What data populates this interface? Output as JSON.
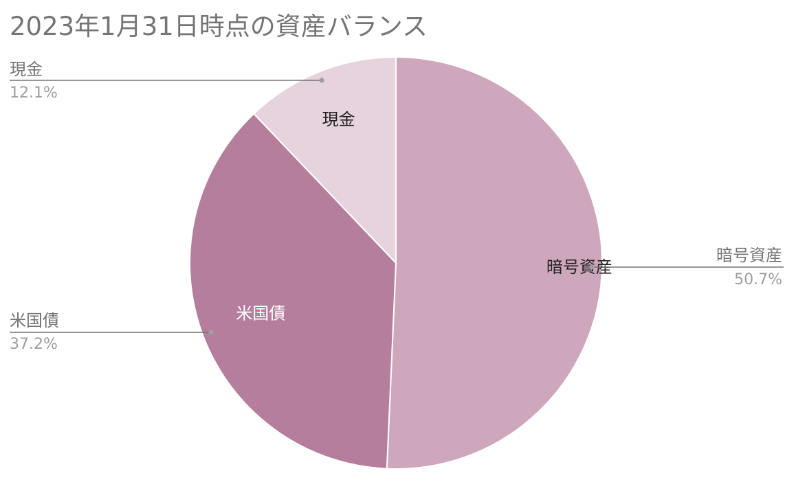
{
  "chart_data": {
    "type": "pie",
    "title": "2023年1月31日時点の資産バランス",
    "slices": [
      {
        "label": "暗号資産",
        "value": 50.7,
        "percent_label": "50.7%",
        "color": "#cea7bd",
        "label_color": "#212121"
      },
      {
        "label": "米国債",
        "value": 37.2,
        "percent_label": "37.2%",
        "color": "#b57e9d",
        "label_color": "#ffffff"
      },
      {
        "label": "現金",
        "value": 12.1,
        "percent_label": "12.1%",
        "color": "#e6d3de",
        "label_color": "#212121"
      }
    ],
    "start_angle": "12 o'clock",
    "direction": "clockwise",
    "legend": "callouts"
  }
}
